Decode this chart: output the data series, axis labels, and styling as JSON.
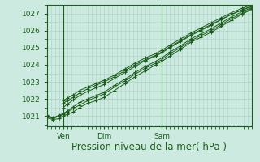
{
  "background_color": "#cceae0",
  "plot_bg_color": "#cceae0",
  "grid_color": "#aad4c4",
  "line_color": "#1a5c1a",
  "marker_color": "#1a5c1a",
  "xlabel": "Pression niveau de la mer( hPa )",
  "xlabel_fontsize": 8.5,
  "yticks": [
    1021,
    1022,
    1023,
    1024,
    1025,
    1026,
    1027
  ],
  "xtick_labels": [
    "Ven",
    "Dim",
    "Sam"
  ],
  "ylim": [
    1020.4,
    1027.5
  ],
  "xlim": [
    0.0,
    100.0
  ],
  "vlines_x": [
    8.0,
    56.0
  ],
  "xtick_positions": [
    8.0,
    28.0,
    56.0
  ],
  "lines": [
    {
      "x": [
        0.0,
        3.0,
        6.0,
        8.0,
        10.0,
        13.0,
        16.0,
        20.0,
        24.0,
        28.0,
        33.0,
        38.0,
        43.0,
        48.0,
        53.0,
        56.0,
        60.0,
        65.0,
        70.0,
        75.0,
        80.0,
        85.0,
        90.0,
        95.0,
        100.0
      ],
      "y": [
        1020.9,
        1020.8,
        1020.85,
        1021.0,
        1021.1,
        1021.25,
        1021.5,
        1021.75,
        1021.9,
        1022.1,
        1022.5,
        1022.9,
        1023.3,
        1023.65,
        1024.0,
        1024.2,
        1024.5,
        1024.9,
        1025.3,
        1025.6,
        1025.9,
        1026.25,
        1026.6,
        1026.95,
        1027.25
      ]
    },
    {
      "x": [
        0.0,
        3.0,
        6.0,
        8.0,
        10.0,
        13.0,
        16.0,
        20.0,
        24.0,
        28.0,
        33.0,
        38.0,
        43.0,
        48.0,
        53.0,
        56.0,
        60.0,
        65.0,
        70.0,
        75.0,
        80.0,
        85.0,
        90.0,
        95.0,
        100.0
      ],
      "y": [
        1021.0,
        1020.85,
        1021.0,
        1021.1,
        1021.25,
        1021.45,
        1021.65,
        1021.9,
        1022.1,
        1022.3,
        1022.7,
        1023.05,
        1023.45,
        1023.8,
        1024.1,
        1024.3,
        1024.65,
        1025.0,
        1025.4,
        1025.7,
        1026.0,
        1026.35,
        1026.7,
        1027.0,
        1027.3
      ]
    },
    {
      "x": [
        0.0,
        3.0,
        6.0,
        8.0,
        10.0,
        13.0,
        16.0,
        20.0,
        24.0,
        28.0,
        33.0,
        38.0,
        43.0,
        48.0,
        53.0,
        56.0,
        60.0,
        65.0,
        70.0,
        75.0,
        80.0,
        85.0,
        90.0,
        95.0,
        100.0
      ],
      "y": [
        1021.05,
        1020.9,
        1021.05,
        1021.15,
        1021.3,
        1021.55,
        1021.8,
        1022.0,
        1022.2,
        1022.4,
        1022.8,
        1023.15,
        1023.55,
        1023.9,
        1024.2,
        1024.4,
        1024.75,
        1025.1,
        1025.5,
        1025.8,
        1026.1,
        1026.45,
        1026.8,
        1027.1,
        1027.35
      ]
    },
    {
      "x": [
        8.0,
        10.0,
        13.0,
        16.0,
        20.0,
        24.0,
        28.0,
        33.0,
        38.0,
        43.0,
        48.0,
        53.0,
        56.0,
        60.0,
        65.0,
        70.0,
        75.0,
        80.0,
        85.0,
        90.0,
        95.0,
        100.0
      ],
      "y": [
        1021.5,
        1021.7,
        1021.95,
        1022.2,
        1022.45,
        1022.65,
        1022.85,
        1023.2,
        1023.55,
        1023.9,
        1024.25,
        1024.5,
        1024.7,
        1025.0,
        1025.35,
        1025.7,
        1026.0,
        1026.3,
        1026.65,
        1026.95,
        1027.2,
        1027.4
      ]
    },
    {
      "x": [
        8.0,
        10.0,
        13.0,
        16.0,
        20.0,
        24.0,
        28.0,
        33.0,
        38.0,
        43.0,
        48.0,
        53.0,
        56.0,
        60.0,
        65.0,
        70.0,
        75.0,
        80.0,
        85.0,
        90.0,
        95.0,
        100.0
      ],
      "y": [
        1021.9,
        1022.05,
        1022.25,
        1022.5,
        1022.7,
        1022.9,
        1023.1,
        1023.4,
        1023.75,
        1024.1,
        1024.4,
        1024.65,
        1024.85,
        1025.15,
        1025.5,
        1025.85,
        1026.15,
        1026.45,
        1026.75,
        1027.05,
        1027.3,
        1027.5
      ]
    },
    {
      "x": [
        8.0,
        10.0,
        13.0,
        16.0,
        20.0,
        24.0,
        28.0,
        33.0,
        38.0,
        43.0,
        48.0,
        53.0,
        56.0,
        60.0,
        65.0,
        70.0,
        75.0,
        80.0,
        85.0,
        90.0,
        95.0,
        100.0
      ],
      "y": [
        1021.75,
        1021.9,
        1022.1,
        1022.35,
        1022.6,
        1022.8,
        1023.0,
        1023.3,
        1023.65,
        1024.0,
        1024.3,
        1024.55,
        1024.75,
        1025.05,
        1025.4,
        1025.75,
        1026.05,
        1026.35,
        1026.65,
        1026.95,
        1027.2,
        1027.45
      ]
    }
  ],
  "tick_fontsize": 6.5
}
